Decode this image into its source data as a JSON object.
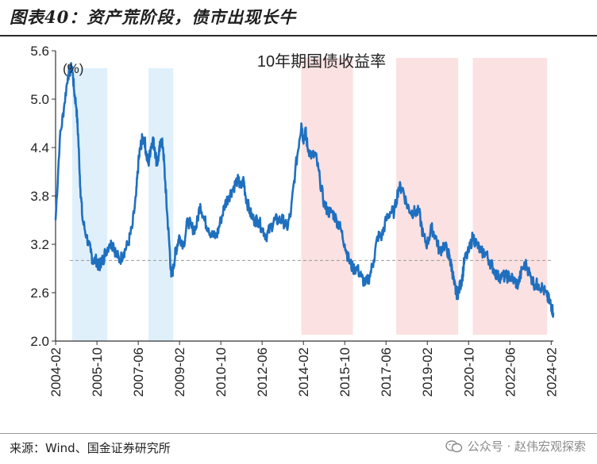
{
  "header": {
    "title": "图表40：资产荒阶段，债市出现长牛"
  },
  "footer": {
    "source": "来源：Wind、国金证券研究所",
    "watermark": "公众号 · 赵伟宏观探索"
  },
  "colors": {
    "line": "#1f6fbf",
    "blue_band": "#dff0fb",
    "pink_band": "#fbe1e1",
    "ref_line": "#9a9a9a"
  },
  "chart_data": {
    "type": "line",
    "title": "10年期国债收益率",
    "ylabel": "(%)",
    "xlabel": "",
    "ylim": [
      2.0,
      5.6
    ],
    "yticks": [
      "2.0",
      "2.6",
      "3.2",
      "3.8",
      "4.4",
      "5.0",
      "5.6"
    ],
    "xlim": [
      2004.08,
      2024.17
    ],
    "xticks": [
      "2004-02",
      "2005-10",
      "2007-06",
      "2009-02",
      "2010-10",
      "2012-06",
      "2014-02",
      "2015-10",
      "2017-06",
      "2019-02",
      "2020-10",
      "2022-06",
      "2024-02"
    ],
    "reference_line": 3.0,
    "shaded_regions": [
      {
        "start": 2004.75,
        "end": 2006.17,
        "color": "blue"
      },
      {
        "start": 2007.83,
        "end": 2008.83,
        "color": "blue"
      },
      {
        "start": 2014.0,
        "end": 2016.08,
        "color": "pink"
      },
      {
        "start": 2017.83,
        "end": 2020.33,
        "color": "pink"
      },
      {
        "start": 2020.92,
        "end": 2023.92,
        "color": "pink"
      }
    ],
    "series": [
      {
        "x": [
          2004.08,
          2004.25,
          2004.42,
          2004.58,
          2004.75,
          2004.83,
          2004.92,
          2005.0,
          2005.08,
          2005.17,
          2005.33,
          2005.5,
          2005.58,
          2005.75,
          2005.83,
          2005.92,
          2006.0,
          2006.08,
          2006.25,
          2006.42,
          2006.5,
          2006.67,
          2006.83,
          2007.0,
          2007.17,
          2007.33,
          2007.42,
          2007.5,
          2007.58,
          2007.67,
          2007.75,
          2007.83,
          2007.92,
          2008.0,
          2008.08,
          2008.17,
          2008.25,
          2008.33,
          2008.42,
          2008.5,
          2008.58,
          2008.67,
          2008.75,
          2008.83,
          2008.92,
          2009.0,
          2009.08,
          2009.25,
          2009.42,
          2009.58,
          2009.75,
          2009.92,
          2010.08,
          2010.25,
          2010.42,
          2010.58,
          2010.75,
          2010.92,
          2011.08,
          2011.25,
          2011.42,
          2011.58,
          2011.67,
          2011.75,
          2011.92,
          2012.08,
          2012.25,
          2012.42,
          2012.58,
          2012.75,
          2012.92,
          2013.08,
          2013.25,
          2013.42,
          2013.58,
          2013.75,
          2013.92,
          2014.0,
          2014.08,
          2014.17,
          2014.25,
          2014.42,
          2014.58,
          2014.75,
          2014.92,
          2015.08,
          2015.25,
          2015.42,
          2015.58,
          2015.75,
          2015.92,
          2016.08,
          2016.25,
          2016.42,
          2016.58,
          2016.75,
          2016.92,
          2017.08,
          2017.25,
          2017.42,
          2017.58,
          2017.75,
          2017.92,
          2018.08,
          2018.25,
          2018.42,
          2018.58,
          2018.75,
          2018.92,
          2019.08,
          2019.25,
          2019.42,
          2019.58,
          2019.75,
          2019.92,
          2020.0,
          2020.08,
          2020.17,
          2020.25,
          2020.33,
          2020.42,
          2020.5,
          2020.58,
          2020.75,
          2020.92,
          2021.08,
          2021.25,
          2021.42,
          2021.58,
          2021.75,
          2021.92,
          2022.08,
          2022.25,
          2022.42,
          2022.58,
          2022.75,
          2022.92,
          2023.08,
          2023.25,
          2023.42,
          2023.58,
          2023.75,
          2023.92,
          2024.0,
          2024.08,
          2024.17
        ],
        "values": [
          3.5,
          4.5,
          4.9,
          5.3,
          5.4,
          5.1,
          4.9,
          4.5,
          3.9,
          3.5,
          3.3,
          3.1,
          3.0,
          3.0,
          2.9,
          3.0,
          3.0,
          3.1,
          3.2,
          3.2,
          3.1,
          3.0,
          3.1,
          3.2,
          3.4,
          3.8,
          4.2,
          4.4,
          4.5,
          4.5,
          4.3,
          4.2,
          4.4,
          4.5,
          4.4,
          4.2,
          4.3,
          4.5,
          4.4,
          4.0,
          3.6,
          3.2,
          2.8,
          2.9,
          3.1,
          3.2,
          3.3,
          3.2,
          3.5,
          3.4,
          3.4,
          3.7,
          3.5,
          3.4,
          3.3,
          3.3,
          3.5,
          3.7,
          3.8,
          3.9,
          4.0,
          3.9,
          4.0,
          3.8,
          3.6,
          3.5,
          3.5,
          3.4,
          3.3,
          3.4,
          3.5,
          3.5,
          3.5,
          3.4,
          3.6,
          4.1,
          4.5,
          4.7,
          4.5,
          4.6,
          4.4,
          4.3,
          4.3,
          4.0,
          3.7,
          3.6,
          3.6,
          3.5,
          3.4,
          3.2,
          3.0,
          2.9,
          2.9,
          2.8,
          2.7,
          2.8,
          3.0,
          3.3,
          3.3,
          3.5,
          3.6,
          3.6,
          3.9,
          3.9,
          3.7,
          3.6,
          3.6,
          3.6,
          3.3,
          3.2,
          3.4,
          3.3,
          3.1,
          3.2,
          3.1,
          3.0,
          2.9,
          2.7,
          2.6,
          2.6,
          2.7,
          2.8,
          3.0,
          3.1,
          3.3,
          3.2,
          3.1,
          3.1,
          3.0,
          2.9,
          2.8,
          2.8,
          2.8,
          2.8,
          2.75,
          2.7,
          2.9,
          2.95,
          2.8,
          2.7,
          2.7,
          2.65,
          2.55,
          2.5,
          2.45,
          2.35
        ]
      }
    ]
  }
}
